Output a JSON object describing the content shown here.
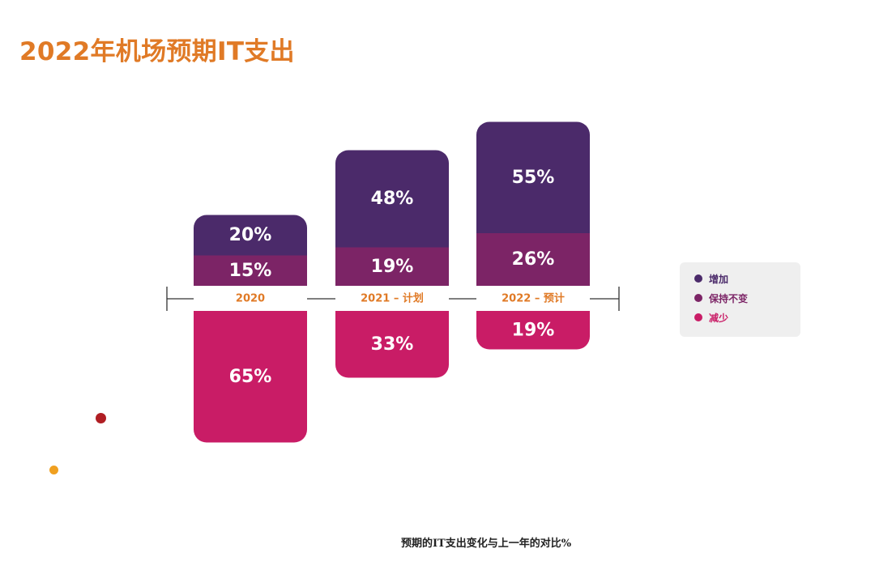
{
  "title": "2022年机场预期IT支出",
  "caption": "预期的IT支出变化与上一年的对比%",
  "chart_data": {
    "type": "bar",
    "stacked": true,
    "categories": [
      "2020",
      "2021 – 计划",
      "2022 – 预计"
    ],
    "series": [
      {
        "name": "增加",
        "values": [
          20,
          48,
          55
        ],
        "color": "#4b2a6a"
      },
      {
        "name": "保持不变",
        "values": [
          15,
          19,
          26
        ],
        "color": "#7c2466"
      },
      {
        "name": "减少",
        "values": [
          65,
          33,
          19
        ],
        "color": "#c91c66"
      }
    ],
    "value_suffix": "%",
    "legend_position": "right",
    "label_color": "#e07a26",
    "grid": false
  },
  "decor": {
    "dots": [
      {
        "color": "#b01e23"
      },
      {
        "color": "#f0a020"
      }
    ]
  }
}
